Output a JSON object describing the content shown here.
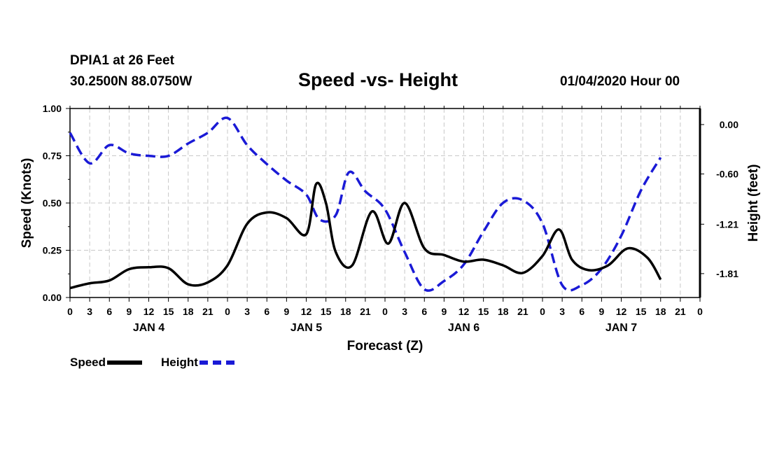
{
  "header": {
    "station": "DPIA1 at 26 Feet",
    "coords": "30.2500N 88.0750W",
    "title": "Speed -vs- Height",
    "datetime": "01/04/2020 Hour 00"
  },
  "legend": {
    "speed": "Speed",
    "height": "Height"
  },
  "chart_data": {
    "type": "line",
    "title": "Speed -vs- Height",
    "xlabel": "Forecast (Z)",
    "ylabel": "Speed (Knots)",
    "y2label": "Height (feet)",
    "x_hours": [
      0,
      96
    ],
    "x_tick_step": 3,
    "x_tick_labels": [
      "0",
      "3",
      "6",
      "9",
      "12",
      "15",
      "18",
      "21",
      "0",
      "3",
      "6",
      "9",
      "12",
      "15",
      "18",
      "21",
      "0",
      "3",
      "6",
      "9",
      "12",
      "15",
      "18",
      "21",
      "0",
      "3",
      "6",
      "9",
      "12",
      "15",
      "18",
      "21",
      "0"
    ],
    "day_labels": [
      {
        "hour": 12,
        "label": "JAN 4"
      },
      {
        "hour": 36,
        "label": "JAN 5"
      },
      {
        "hour": 60,
        "label": "JAN 6"
      },
      {
        "hour": 84,
        "label": "JAN 7"
      }
    ],
    "ylim": [
      0,
      1.0
    ],
    "y_ticks": [
      "0.00",
      "0.25",
      "0.50",
      "0.75",
      "1.00"
    ],
    "y2lim": [
      -2.1,
      0.195
    ],
    "y2_ticks": [
      "0.00",
      "-0.60",
      "-1.21",
      "-1.81"
    ],
    "grid": true,
    "series": [
      {
        "name": "Speed",
        "axis": "left",
        "color": "#000000",
        "dash": "solid",
        "points": [
          [
            0,
            0.05
          ],
          [
            3,
            0.075
          ],
          [
            6,
            0.09
          ],
          [
            9,
            0.15
          ],
          [
            12,
            0.16
          ],
          [
            15,
            0.155
          ],
          [
            18,
            0.07
          ],
          [
            21,
            0.08
          ],
          [
            24,
            0.17
          ],
          [
            27,
            0.39
          ],
          [
            30,
            0.45
          ],
          [
            33,
            0.42
          ],
          [
            36,
            0.335
          ],
          [
            37.5,
            0.6
          ],
          [
            39,
            0.5
          ],
          [
            40.5,
            0.24
          ],
          [
            43,
            0.17
          ],
          [
            46,
            0.455
          ],
          [
            48.5,
            0.285
          ],
          [
            51,
            0.5
          ],
          [
            54,
            0.26
          ],
          [
            57,
            0.225
          ],
          [
            60,
            0.19
          ],
          [
            63,
            0.2
          ],
          [
            66,
            0.17
          ],
          [
            69,
            0.13
          ],
          [
            72,
            0.22
          ],
          [
            74.5,
            0.36
          ],
          [
            76.5,
            0.2
          ],
          [
            79,
            0.145
          ],
          [
            82,
            0.17
          ],
          [
            85,
            0.26
          ],
          [
            88,
            0.21
          ],
          [
            90,
            0.095
          ]
        ]
      },
      {
        "name": "Height",
        "axis": "right",
        "color": "#1a1ad6",
        "dash": "dashed",
        "points": [
          [
            0,
            -0.1
          ],
          [
            3,
            -0.47
          ],
          [
            6,
            -0.25
          ],
          [
            9,
            -0.35
          ],
          [
            12,
            -0.38
          ],
          [
            15,
            -0.38
          ],
          [
            18,
            -0.23
          ],
          [
            21,
            -0.1
          ],
          [
            24,
            0.08
          ],
          [
            27,
            -0.25
          ],
          [
            30,
            -0.48
          ],
          [
            33,
            -0.68
          ],
          [
            36,
            -0.85
          ],
          [
            38,
            -1.15
          ],
          [
            40.5,
            -1.1
          ],
          [
            42.5,
            -0.58
          ],
          [
            45,
            -0.81
          ],
          [
            48,
            -1.03
          ],
          [
            51,
            -1.55
          ],
          [
            54,
            -2.0
          ],
          [
            57,
            -1.9
          ],
          [
            60,
            -1.7
          ],
          [
            63,
            -1.3
          ],
          [
            66,
            -0.95
          ],
          [
            69,
            -0.92
          ],
          [
            72,
            -1.2
          ],
          [
            75,
            -1.95
          ],
          [
            78,
            -1.95
          ],
          [
            81,
            -1.75
          ],
          [
            84,
            -1.35
          ],
          [
            87,
            -0.8
          ],
          [
            90,
            -0.4
          ]
        ]
      }
    ]
  }
}
